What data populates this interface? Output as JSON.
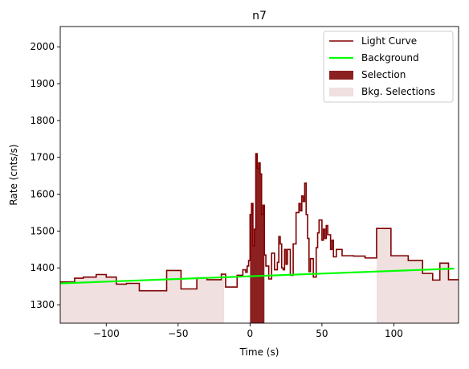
{
  "chart_data": {
    "type": "line",
    "title": "n7",
    "xlabel": "Time (s)",
    "ylabel": "Rate (cnts/s)",
    "xlim": [
      -132,
      145
    ],
    "ylim": [
      1250,
      2055
    ],
    "xticks": [
      -100,
      -50,
      0,
      50,
      100
    ],
    "yticks": [
      1300,
      1400,
      1500,
      1600,
      1700,
      1800,
      1900,
      2000
    ],
    "legend_position": "top-right",
    "grid": false,
    "colors": {
      "light_curve": "#800000",
      "background": "#00ff00",
      "selection": "#8b2020",
      "bkg_selection": "#f0e0e0"
    },
    "legend": [
      {
        "label": "Light Curve",
        "kind": "line",
        "color": "#800000"
      },
      {
        "label": "Background",
        "kind": "line",
        "color": "#00ff00"
      },
      {
        "label": "Selection",
        "kind": "patch",
        "color": "#8b2020"
      },
      {
        "label": "Bkg. Selections",
        "kind": "patch",
        "color": "#f0e0e0"
      }
    ],
    "light_curve_steps": [
      [
        -132,
        -127,
        1362
      ],
      [
        -127,
        -122,
        1362
      ],
      [
        -122,
        -116,
        1372
      ],
      [
        -116,
        -107,
        1375
      ],
      [
        -107,
        -100,
        1382
      ],
      [
        -100,
        -93,
        1375
      ],
      [
        -93,
        -86,
        1356
      ],
      [
        -86,
        -77,
        1358
      ],
      [
        -77,
        -58,
        1338
      ],
      [
        -58,
        -48,
        1393
      ],
      [
        -48,
        -37,
        1343
      ],
      [
        -37,
        -30,
        1373
      ],
      [
        -30,
        -20,
        1368
      ],
      [
        -20,
        -17,
        1383
      ],
      [
        -17,
        -9,
        1348
      ],
      [
        -9,
        -5,
        1380
      ],
      [
        -5,
        -3,
        1395
      ],
      [
        -3,
        -2,
        1388
      ],
      [
        -2,
        -1,
        1405
      ],
      [
        -1,
        0,
        1420
      ],
      [
        0,
        1,
        1545
      ],
      [
        1,
        2,
        1575
      ],
      [
        2,
        3,
        1460
      ],
      [
        3,
        4,
        1505
      ],
      [
        4,
        5,
        1710
      ],
      [
        5,
        6,
        1670
      ],
      [
        6,
        7,
        1685
      ],
      [
        7,
        8,
        1655
      ],
      [
        8,
        9,
        1545
      ],
      [
        9,
        10,
        1570
      ],
      [
        10,
        11,
        1435
      ],
      [
        11,
        13,
        1405
      ],
      [
        13,
        15,
        1370
      ],
      [
        15,
        17,
        1440
      ],
      [
        17,
        19,
        1395
      ],
      [
        19,
        20,
        1415
      ],
      [
        20,
        21,
        1485
      ],
      [
        21,
        22,
        1465
      ],
      [
        22,
        23,
        1400
      ],
      [
        23,
        24,
        1395
      ],
      [
        24,
        25,
        1450
      ],
      [
        25,
        26,
        1410
      ],
      [
        26,
        28,
        1450
      ],
      [
        28,
        30,
        1380
      ],
      [
        30,
        32,
        1465
      ],
      [
        32,
        34,
        1550
      ],
      [
        34,
        35,
        1575
      ],
      [
        35,
        36,
        1555
      ],
      [
        36,
        37,
        1595
      ],
      [
        37,
        38,
        1580
      ],
      [
        38,
        39,
        1630
      ],
      [
        39,
        40,
        1545
      ],
      [
        40,
        41,
        1480
      ],
      [
        41,
        42,
        1390
      ],
      [
        42,
        44,
        1425
      ],
      [
        44,
        46,
        1375
      ],
      [
        46,
        47,
        1455
      ],
      [
        47,
        48,
        1495
      ],
      [
        48,
        50,
        1530
      ],
      [
        50,
        51,
        1475
      ],
      [
        51,
        52,
        1505
      ],
      [
        52,
        53,
        1480
      ],
      [
        53,
        54,
        1515
      ],
      [
        54,
        56,
        1490
      ],
      [
        56,
        57,
        1450
      ],
      [
        57,
        58,
        1475
      ],
      [
        58,
        60,
        1430
      ],
      [
        60,
        62,
        1450
      ],
      [
        62,
        64,
        1450
      ],
      [
        64,
        72,
        1433
      ],
      [
        72,
        80,
        1432
      ],
      [
        80,
        88,
        1427
      ],
      [
        88,
        98,
        1507
      ],
      [
        98,
        110,
        1433
      ],
      [
        110,
        120,
        1420
      ],
      [
        120,
        127,
        1385
      ],
      [
        127,
        132,
        1367
      ],
      [
        132,
        138,
        1413
      ],
      [
        138,
        145,
        1368
      ]
    ],
    "background": {
      "x": [
        -132,
        142
      ],
      "y": [
        1358,
        1398
      ]
    },
    "selection_range": [
      0,
      10
    ],
    "bkg_selection_ranges": [
      [
        -132,
        -18
      ],
      [
        88,
        145
      ]
    ]
  }
}
